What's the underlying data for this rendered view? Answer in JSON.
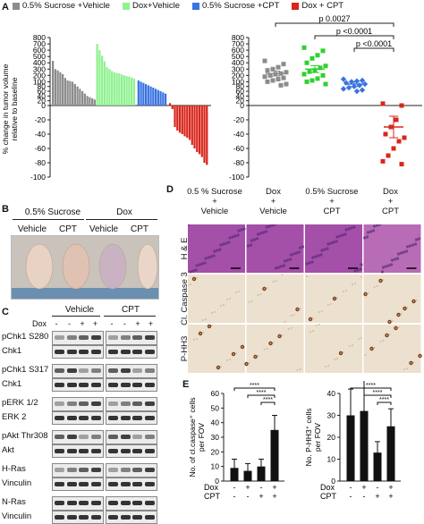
{
  "panels": {
    "A": "A",
    "B": "B",
    "C": "C",
    "D": "D",
    "E": "E"
  },
  "legend": [
    {
      "label": "0.5% Sucrose +Vehicle",
      "color": "#8c8c8c"
    },
    {
      "label": "Dox+Vehicle",
      "color": "#8ff28f"
    },
    {
      "label": "0.5% Sucrose +CPT",
      "color": "#3a73e0"
    },
    {
      "label": "Dox + CPT",
      "color": "#d9261c"
    }
  ],
  "panelA": {
    "ylabel_lines": [
      "% change in tumor volume",
      "relative to baseline"
    ],
    "yticks": [
      -100,
      -80,
      -60,
      -40,
      -20,
      0,
      20,
      40,
      60,
      80,
      100,
      200,
      300,
      400,
      500,
      600,
      700,
      800
    ]
  },
  "chart_data": [
    {
      "type": "bar",
      "name": "waterfall",
      "ylim": [
        -100,
        800
      ],
      "series": [
        {
          "group": "0.5% Sucrose +Vehicle",
          "color": "#8c8c8c",
          "values": [
            430,
            300,
            280,
            250,
            220,
            160,
            120,
            110,
            100,
            90,
            80,
            70,
            60,
            50,
            40,
            35,
            30,
            25
          ]
        },
        {
          "group": "Dox+Vehicle",
          "color": "#8ff28f",
          "values": [
            700,
            600,
            510,
            420,
            330,
            300,
            270,
            250,
            240,
            230,
            215,
            200,
            190,
            180,
            165,
            150
          ]
        },
        {
          "group": "0.5% Sucrose +CPT",
          "color": "#3a73e0",
          "values": [
            120,
            100,
            95,
            90,
            85,
            80,
            75,
            70,
            65,
            60,
            55,
            50
          ]
        },
        {
          "group": "Dox + CPT",
          "color": "#d9261c",
          "values": [
            10,
            -5,
            -30,
            -35,
            -38,
            -40,
            -43,
            -45,
            -48,
            -55,
            -60,
            -65,
            -68,
            -72,
            -80,
            -83
          ]
        }
      ]
    },
    {
      "type": "scatter",
      "name": "dot-plot",
      "yticks": [
        -100,
        -80,
        -60,
        -40,
        -20,
        0,
        20,
        40,
        60,
        80,
        100,
        200,
        300,
        400,
        500,
        600,
        700,
        800
      ],
      "groups": [
        {
          "name": "0.5% Sucrose +Vehicle",
          "color": "#8c8c8c",
          "marker": "square",
          "points": [
            430,
            380,
            330,
            300,
            280,
            250,
            230,
            220,
            200,
            180,
            160,
            140,
            120,
            100,
            90,
            85
          ],
          "mean": 230,
          "sem": 40
        },
        {
          "name": "Dox+Vehicle",
          "color": "#2fd12f",
          "marker": "square",
          "points": [
            640,
            590,
            520,
            470,
            400,
            350,
            320,
            280,
            260,
            220,
            200,
            150,
            120,
            100,
            90
          ],
          "mean": 300,
          "sem": 55
        },
        {
          "name": "0.5% Sucrose +CPT",
          "color": "#3a73e0",
          "marker": "diamond",
          "points": [
            140,
            120,
            110,
            100,
            95,
            90,
            85,
            80,
            75,
            70,
            65,
            60
          ],
          "mean": 90,
          "sem": 10
        },
        {
          "name": "Dox + CPT",
          "color": "#d9261c",
          "marker": "square",
          "points": [
            8,
            0,
            -20,
            -30,
            -40,
            -45,
            -50,
            -60,
            -70,
            -78,
            -82
          ],
          "mean": -30,
          "sem": 15
        }
      ],
      "annotations": [
        "p 0.0027",
        "p <0.0001",
        "p <0.0001"
      ]
    },
    {
      "type": "bar",
      "name": "cl-caspase",
      "ylabel_lines": [
        "No. of cl.caspase⁺ cells",
        "per FOV"
      ],
      "yticks": [
        0,
        10,
        20,
        30,
        40,
        50,
        60
      ],
      "ylim": [
        0,
        60
      ],
      "values": [
        9,
        7,
        10,
        35
      ],
      "errors": [
        6,
        5,
        5,
        10
      ],
      "sig": [
        "****",
        "****",
        "****"
      ]
    },
    {
      "type": "bar",
      "name": "p-hh3",
      "ylabel_lines": [
        "No. P-HH3⁺ cells",
        "per FOV"
      ],
      "yticks": [
        0,
        10,
        20,
        30,
        40
      ],
      "ylim": [
        0,
        40
      ],
      "values": [
        30,
        32,
        13,
        25
      ],
      "errors": [
        12,
        14,
        5,
        8
      ],
      "sig": [
        "****",
        "****",
        "****"
      ]
    }
  ],
  "panelE": {
    "row1_label": "Dox",
    "row2_label": "CPT",
    "dox": [
      "-",
      "+",
      "-",
      "+"
    ],
    "cpt": [
      "-",
      "-",
      "+",
      "+"
    ]
  },
  "panelB": {
    "group1": "0.5% Sucrose",
    "group2": "Dox",
    "mice": [
      "Vehicle",
      "CPT",
      "Vehicle",
      "CPT"
    ]
  },
  "panelC": {
    "group1": "Vehicle",
    "group2": "CPT",
    "dox_label": "Dox",
    "dox_signs": [
      "-",
      "-",
      "+",
      "+",
      "-",
      "-",
      "+",
      "+"
    ],
    "rows": [
      "pChk1 S280",
      "Chk1",
      "pChk1 S317",
      "Chk1",
      "pERK 1/2",
      "ERK 2",
      "pAkt Thr308",
      "Akt",
      "H-Ras",
      "Vinculin",
      "N-Ras",
      "Vinculin"
    ]
  },
  "panelD": {
    "columns": [
      [
        "0.5 % Sucrose",
        "+",
        "Vehicle"
      ],
      [
        "Dox",
        "+",
        "Vehicle"
      ],
      [
        "0.5% Sucrose",
        "+",
        "CPT"
      ],
      [
        "Dox",
        "+",
        "CPT"
      ]
    ],
    "rows": [
      "H & E",
      "Cl. Caspase 3",
      "P-HH3"
    ]
  }
}
